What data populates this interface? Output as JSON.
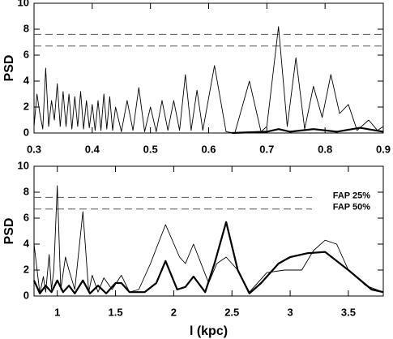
{
  "chart_data": [
    {
      "type": "line",
      "ylabel": "PSD",
      "xlim": [
        0.3,
        0.9
      ],
      "xticks": [
        0.3,
        0.4,
        0.5,
        0.6,
        0.7,
        0.8,
        0.9
      ],
      "ylim": [
        0,
        10
      ],
      "yticks": [
        0,
        2,
        4,
        6,
        8,
        10
      ],
      "fap_levels": [
        7.6,
        6.7
      ],
      "series": [
        {
          "color": "#000000",
          "width": "thin",
          "x": [
            0.3,
            0.305,
            0.31,
            0.315,
            0.32,
            0.325,
            0.33,
            0.335,
            0.34,
            0.345,
            0.35,
            0.355,
            0.36,
            0.365,
            0.37,
            0.375,
            0.38,
            0.385,
            0.39,
            0.395,
            0.4,
            0.405,
            0.41,
            0.415,
            0.42,
            0.425,
            0.43,
            0.435,
            0.44,
            0.45,
            0.46,
            0.47,
            0.48,
            0.49,
            0.5,
            0.51,
            0.52,
            0.53,
            0.54,
            0.55,
            0.56,
            0.57,
            0.58,
            0.59,
            0.61,
            0.63,
            0.645,
            0.67,
            0.69,
            0.7,
            0.72,
            0.735,
            0.75,
            0.765,
            0.78,
            0.795,
            0.81,
            0.825,
            0.84,
            0.855,
            0.875,
            0.89,
            0.9
          ],
          "values": [
            0.5,
            3.0,
            1.5,
            0.3,
            5.0,
            0.5,
            2.5,
            1.0,
            3.8,
            0.5,
            3.2,
            0.5,
            3.0,
            0.3,
            2.8,
            0.5,
            3.2,
            0.3,
            2.5,
            0.4,
            2.2,
            0.2,
            2.5,
            0.2,
            3.0,
            0.3,
            2.8,
            0.2,
            2.0,
            0.1,
            2.5,
            0.2,
            3.5,
            0.1,
            2.0,
            0.1,
            2.5,
            0.2,
            2.5,
            0.2,
            4.5,
            0.2,
            3.3,
            0.2,
            5.2,
            0.1,
            0.0,
            4.0,
            0.1,
            0.5,
            8.2,
            0.5,
            5.8,
            0.3,
            3.6,
            1.2,
            4.5,
            1.5,
            2.2,
            0.2,
            1.0,
            0.2,
            0.5
          ]
        },
        {
          "color": "#000000",
          "width": "thick",
          "x": [
            0.64,
            0.7,
            0.72,
            0.74,
            0.78,
            0.82,
            0.86,
            0.9
          ],
          "values": [
            0.0,
            0.1,
            0.3,
            0.1,
            0.3,
            0.1,
            0.4,
            0.1
          ]
        }
      ]
    },
    {
      "type": "line",
      "ylabel": "PSD",
      "xlabel": "l (kpc)",
      "xlim": [
        0.8,
        3.8
      ],
      "xticks": [
        1,
        1.5,
        2,
        2.5,
        3,
        3.5
      ],
      "ylim": [
        0,
        10
      ],
      "yticks": [
        0,
        2,
        4,
        6,
        8,
        10
      ],
      "fap_levels": [
        {
          "value": 7.6,
          "label": "FAP 25%"
        },
        {
          "value": 6.7,
          "label": "FAP 50%"
        }
      ],
      "series": [
        {
          "color": "#000000",
          "width": "thin",
          "x": [
            0.8,
            0.85,
            0.88,
            0.9,
            0.93,
            0.95,
            0.97,
            1.0,
            1.03,
            1.07,
            1.1,
            1.15,
            1.22,
            1.27,
            1.3,
            1.35,
            1.4,
            1.47,
            1.55,
            1.62,
            1.7,
            1.8,
            1.93,
            2.05,
            2.1,
            2.17,
            2.3,
            2.37,
            2.45,
            2.55,
            2.65,
            2.8,
            2.95,
            3.1,
            3.2,
            3.3,
            3.4,
            3.5,
            3.65,
            3.8
          ],
          "values": [
            4.0,
            0.2,
            1.5,
            0.3,
            3.2,
            0.5,
            2.0,
            8.5,
            0.5,
            3.0,
            2.0,
            0.5,
            6.5,
            0.3,
            1.6,
            0.3,
            1.4,
            0.5,
            1.6,
            0.3,
            0.5,
            2.5,
            5.5,
            3.0,
            2.5,
            4.0,
            1.0,
            2.5,
            3.0,
            2.0,
            0.3,
            1.8,
            2.0,
            2.0,
            3.5,
            4.3,
            4.0,
            2.0,
            0.8,
            0.3
          ]
        },
        {
          "color": "#000000",
          "width": "thick",
          "x": [
            0.8,
            0.85,
            0.9,
            0.95,
            1.0,
            1.05,
            1.1,
            1.15,
            1.22,
            1.28,
            1.35,
            1.42,
            1.5,
            1.55,
            1.62,
            1.75,
            1.85,
            1.93,
            2.03,
            2.1,
            2.17,
            2.27,
            2.35,
            2.45,
            2.55,
            2.65,
            2.75,
            2.9,
            3.0,
            3.15,
            3.3,
            3.5,
            3.7,
            3.8
          ],
          "values": [
            1.2,
            0.2,
            0.8,
            0.3,
            1.2,
            0.3,
            0.8,
            0.2,
            1.2,
            0.2,
            0.8,
            0.2,
            1.0,
            1.0,
            0.3,
            0.3,
            1.0,
            2.7,
            0.5,
            0.7,
            1.5,
            0.3,
            2.5,
            5.7,
            2.0,
            0.2,
            1.0,
            2.5,
            3.0,
            3.3,
            3.4,
            2.0,
            0.5,
            0.3
          ]
        }
      ]
    }
  ]
}
